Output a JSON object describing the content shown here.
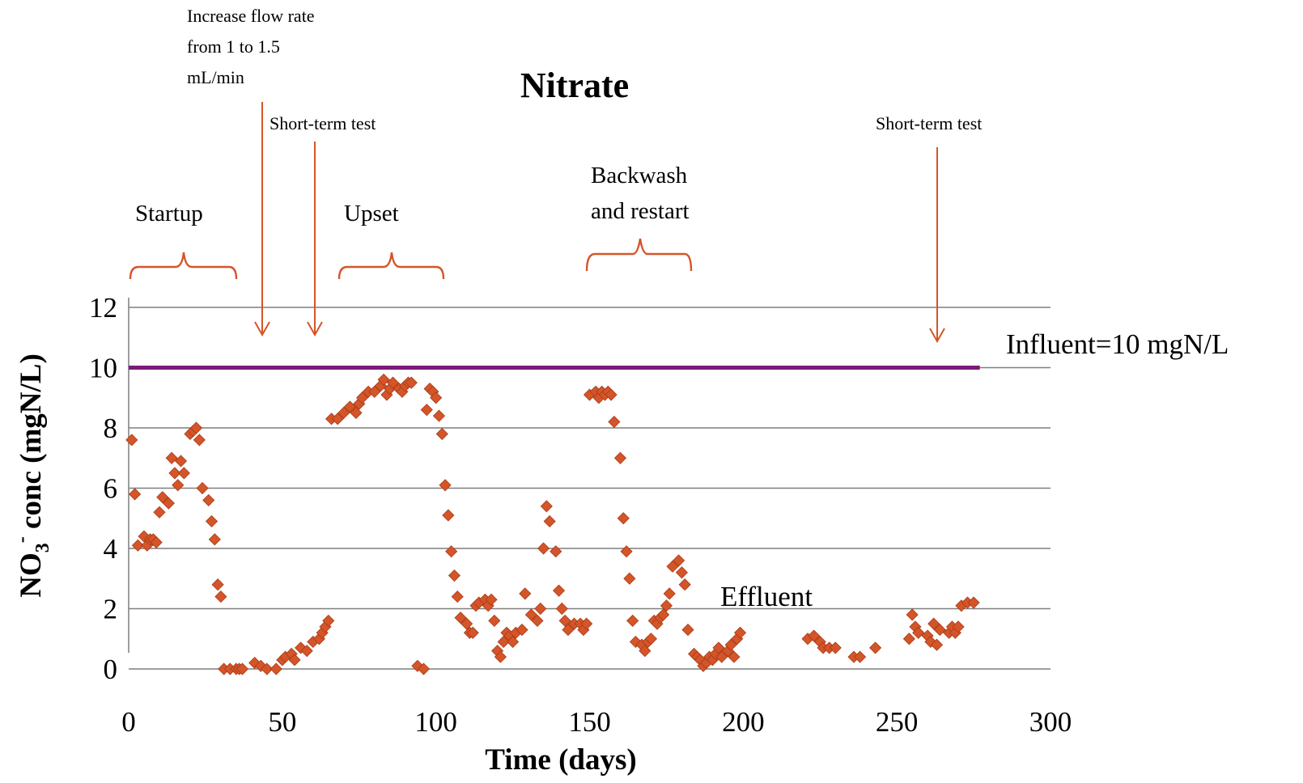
{
  "chart_data": {
    "type": "scatter",
    "title": "Nitrate",
    "xlabel": "Time (days)",
    "ylabel": {
      "main": "NO",
      "sub": "3",
      "sup": "-",
      "rest": " conc (mgN/L)"
    },
    "xlim": [
      0,
      300
    ],
    "ylim": [
      0,
      12
    ],
    "xticks": [
      0,
      50,
      100,
      150,
      200,
      250,
      300
    ],
    "yticks": [
      0,
      2,
      4,
      6,
      8,
      10,
      12
    ],
    "grid": true,
    "colors": {
      "effluent": "#d45529",
      "influent": "#7b1a79",
      "annotation": "#d45529"
    },
    "series": [
      {
        "name": "Influent=10 mgN/L",
        "kind": "line",
        "points": [
          [
            0,
            10
          ],
          [
            277,
            10
          ]
        ]
      },
      {
        "name": "Effluent",
        "kind": "markers",
        "points": [
          [
            1,
            7.6
          ],
          [
            2,
            5.8
          ],
          [
            3,
            4.1
          ],
          [
            5,
            4.4
          ],
          [
            6,
            4.1
          ],
          [
            7,
            4.3
          ],
          [
            8,
            4.3
          ],
          [
            9,
            4.2
          ],
          [
            10,
            5.2
          ],
          [
            11,
            5.7
          ],
          [
            13,
            5.5
          ],
          [
            14,
            7.0
          ],
          [
            15,
            6.5
          ],
          [
            16,
            6.1
          ],
          [
            17,
            6.9
          ],
          [
            18,
            6.5
          ],
          [
            20,
            7.8
          ],
          [
            21,
            7.9
          ],
          [
            22,
            8.0
          ],
          [
            23,
            7.6
          ],
          [
            24,
            6.0
          ],
          [
            26,
            5.6
          ],
          [
            27,
            4.9
          ],
          [
            28,
            4.3
          ],
          [
            29,
            2.8
          ],
          [
            30,
            2.4
          ],
          [
            31,
            0.0
          ],
          [
            33,
            0.0
          ],
          [
            35,
            0.0
          ],
          [
            36,
            0.0
          ],
          [
            37,
            0.0
          ],
          [
            41,
            0.2
          ],
          [
            43,
            0.1
          ],
          [
            45,
            0.0
          ],
          [
            48,
            0.0
          ],
          [
            50,
            0.3
          ],
          [
            51,
            0.4
          ],
          [
            53,
            0.5
          ],
          [
            54,
            0.3
          ],
          [
            56,
            0.7
          ],
          [
            58,
            0.6
          ],
          [
            60,
            0.9
          ],
          [
            62,
            1.0
          ],
          [
            63,
            1.2
          ],
          [
            64,
            1.4
          ],
          [
            65,
            1.6
          ],
          [
            66,
            8.3
          ],
          [
            68,
            8.3
          ],
          [
            70,
            8.5
          ],
          [
            72,
            8.7
          ],
          [
            74,
            8.5
          ],
          [
            75,
            8.8
          ],
          [
            76,
            9.0
          ],
          [
            78,
            9.2
          ],
          [
            80,
            9.2
          ],
          [
            82,
            9.4
          ],
          [
            83,
            9.6
          ],
          [
            84,
            9.1
          ],
          [
            85,
            9.3
          ],
          [
            86,
            9.5
          ],
          [
            88,
            9.3
          ],
          [
            89,
            9.2
          ],
          [
            90,
            9.4
          ],
          [
            91,
            9.5
          ],
          [
            92,
            9.5
          ],
          [
            94,
            0.1
          ],
          [
            96,
            0.0
          ],
          [
            97,
            8.6
          ],
          [
            98,
            9.3
          ],
          [
            99,
            9.2
          ],
          [
            100,
            9.0
          ],
          [
            101,
            8.4
          ],
          [
            102,
            7.8
          ],
          [
            103,
            6.1
          ],
          [
            104,
            5.1
          ],
          [
            105,
            3.9
          ],
          [
            106,
            3.1
          ],
          [
            107,
            2.4
          ],
          [
            108,
            1.7
          ],
          [
            110,
            1.5
          ],
          [
            111,
            1.2
          ],
          [
            112,
            1.2
          ],
          [
            113,
            2.1
          ],
          [
            114,
            2.2
          ],
          [
            116,
            2.3
          ],
          [
            117,
            2.1
          ],
          [
            118,
            2.3
          ],
          [
            119,
            1.6
          ],
          [
            120,
            0.6
          ],
          [
            121,
            0.4
          ],
          [
            122,
            0.9
          ],
          [
            123,
            1.2
          ],
          [
            124,
            1.1
          ],
          [
            125,
            0.9
          ],
          [
            126,
            1.2
          ],
          [
            128,
            1.3
          ],
          [
            129,
            2.5
          ],
          [
            131,
            1.8
          ],
          [
            133,
            1.6
          ],
          [
            134,
            2.0
          ],
          [
            135,
            4.0
          ],
          [
            136,
            5.4
          ],
          [
            137,
            4.9
          ],
          [
            139,
            3.9
          ],
          [
            140,
            2.6
          ],
          [
            141,
            2.0
          ],
          [
            142,
            1.6
          ],
          [
            143,
            1.3
          ],
          [
            145,
            1.5
          ],
          [
            147,
            1.5
          ],
          [
            148,
            1.3
          ],
          [
            149,
            1.5
          ],
          [
            150,
            9.1
          ],
          [
            152,
            9.2
          ],
          [
            153,
            9.0
          ],
          [
            154,
            9.2
          ],
          [
            155,
            9.1
          ],
          [
            156,
            9.2
          ],
          [
            157,
            9.1
          ],
          [
            158,
            8.2
          ],
          [
            160,
            7.0
          ],
          [
            161,
            5.0
          ],
          [
            162,
            3.9
          ],
          [
            163,
            3.0
          ],
          [
            164,
            1.6
          ],
          [
            165,
            0.9
          ],
          [
            167,
            0.8
          ],
          [
            168,
            0.6
          ],
          [
            169,
            0.9
          ],
          [
            170,
            1.0
          ],
          [
            171,
            1.6
          ],
          [
            172,
            1.5
          ],
          [
            173,
            1.7
          ],
          [
            174,
            1.8
          ],
          [
            175,
            2.1
          ],
          [
            176,
            2.5
          ],
          [
            177,
            3.4
          ],
          [
            179,
            3.6
          ],
          [
            180,
            3.2
          ],
          [
            181,
            2.8
          ],
          [
            182,
            1.3
          ],
          [
            184,
            0.5
          ],
          [
            185,
            0.4
          ],
          [
            186,
            0.3
          ],
          [
            187,
            0.1
          ],
          [
            188,
            0.2
          ],
          [
            189,
            0.4
          ],
          [
            190,
            0.3
          ],
          [
            191,
            0.5
          ],
          [
            192,
            0.7
          ],
          [
            193,
            0.4
          ],
          [
            195,
            0.6
          ],
          [
            196,
            0.8
          ],
          [
            197,
            0.4
          ],
          [
            198,
            1.0
          ],
          [
            199,
            1.2
          ],
          [
            221,
            1.0
          ],
          [
            223,
            1.1
          ],
          [
            225,
            0.9
          ],
          [
            226,
            0.7
          ],
          [
            228,
            0.7
          ],
          [
            230,
            0.7
          ],
          [
            236,
            0.4
          ],
          [
            238,
            0.4
          ],
          [
            243,
            0.7
          ],
          [
            254,
            1.0
          ],
          [
            255,
            1.8
          ],
          [
            256,
            1.4
          ],
          [
            257,
            1.2
          ],
          [
            260,
            1.1
          ],
          [
            261,
            0.9
          ],
          [
            262,
            1.5
          ],
          [
            263,
            0.8
          ],
          [
            264,
            1.3
          ],
          [
            267,
            1.2
          ],
          [
            268,
            1.4
          ],
          [
            269,
            1.2
          ],
          [
            270,
            1.4
          ],
          [
            271,
            2.1
          ],
          [
            273,
            2.2
          ],
          [
            275,
            2.2
          ]
        ]
      }
    ],
    "annotations": {
      "flow_rate": [
        "Increase flow rate",
        "from 1 to 1.5",
        "mL/min"
      ],
      "short_term_1": "Short-term test",
      "short_term_2": "Short-term test",
      "startup": "Startup",
      "upset": "Upset",
      "backwash": [
        "Backwash",
        "and restart"
      ],
      "influent_label": "Influent=10 mgN/L",
      "effluent_label": "Effluent"
    }
  }
}
